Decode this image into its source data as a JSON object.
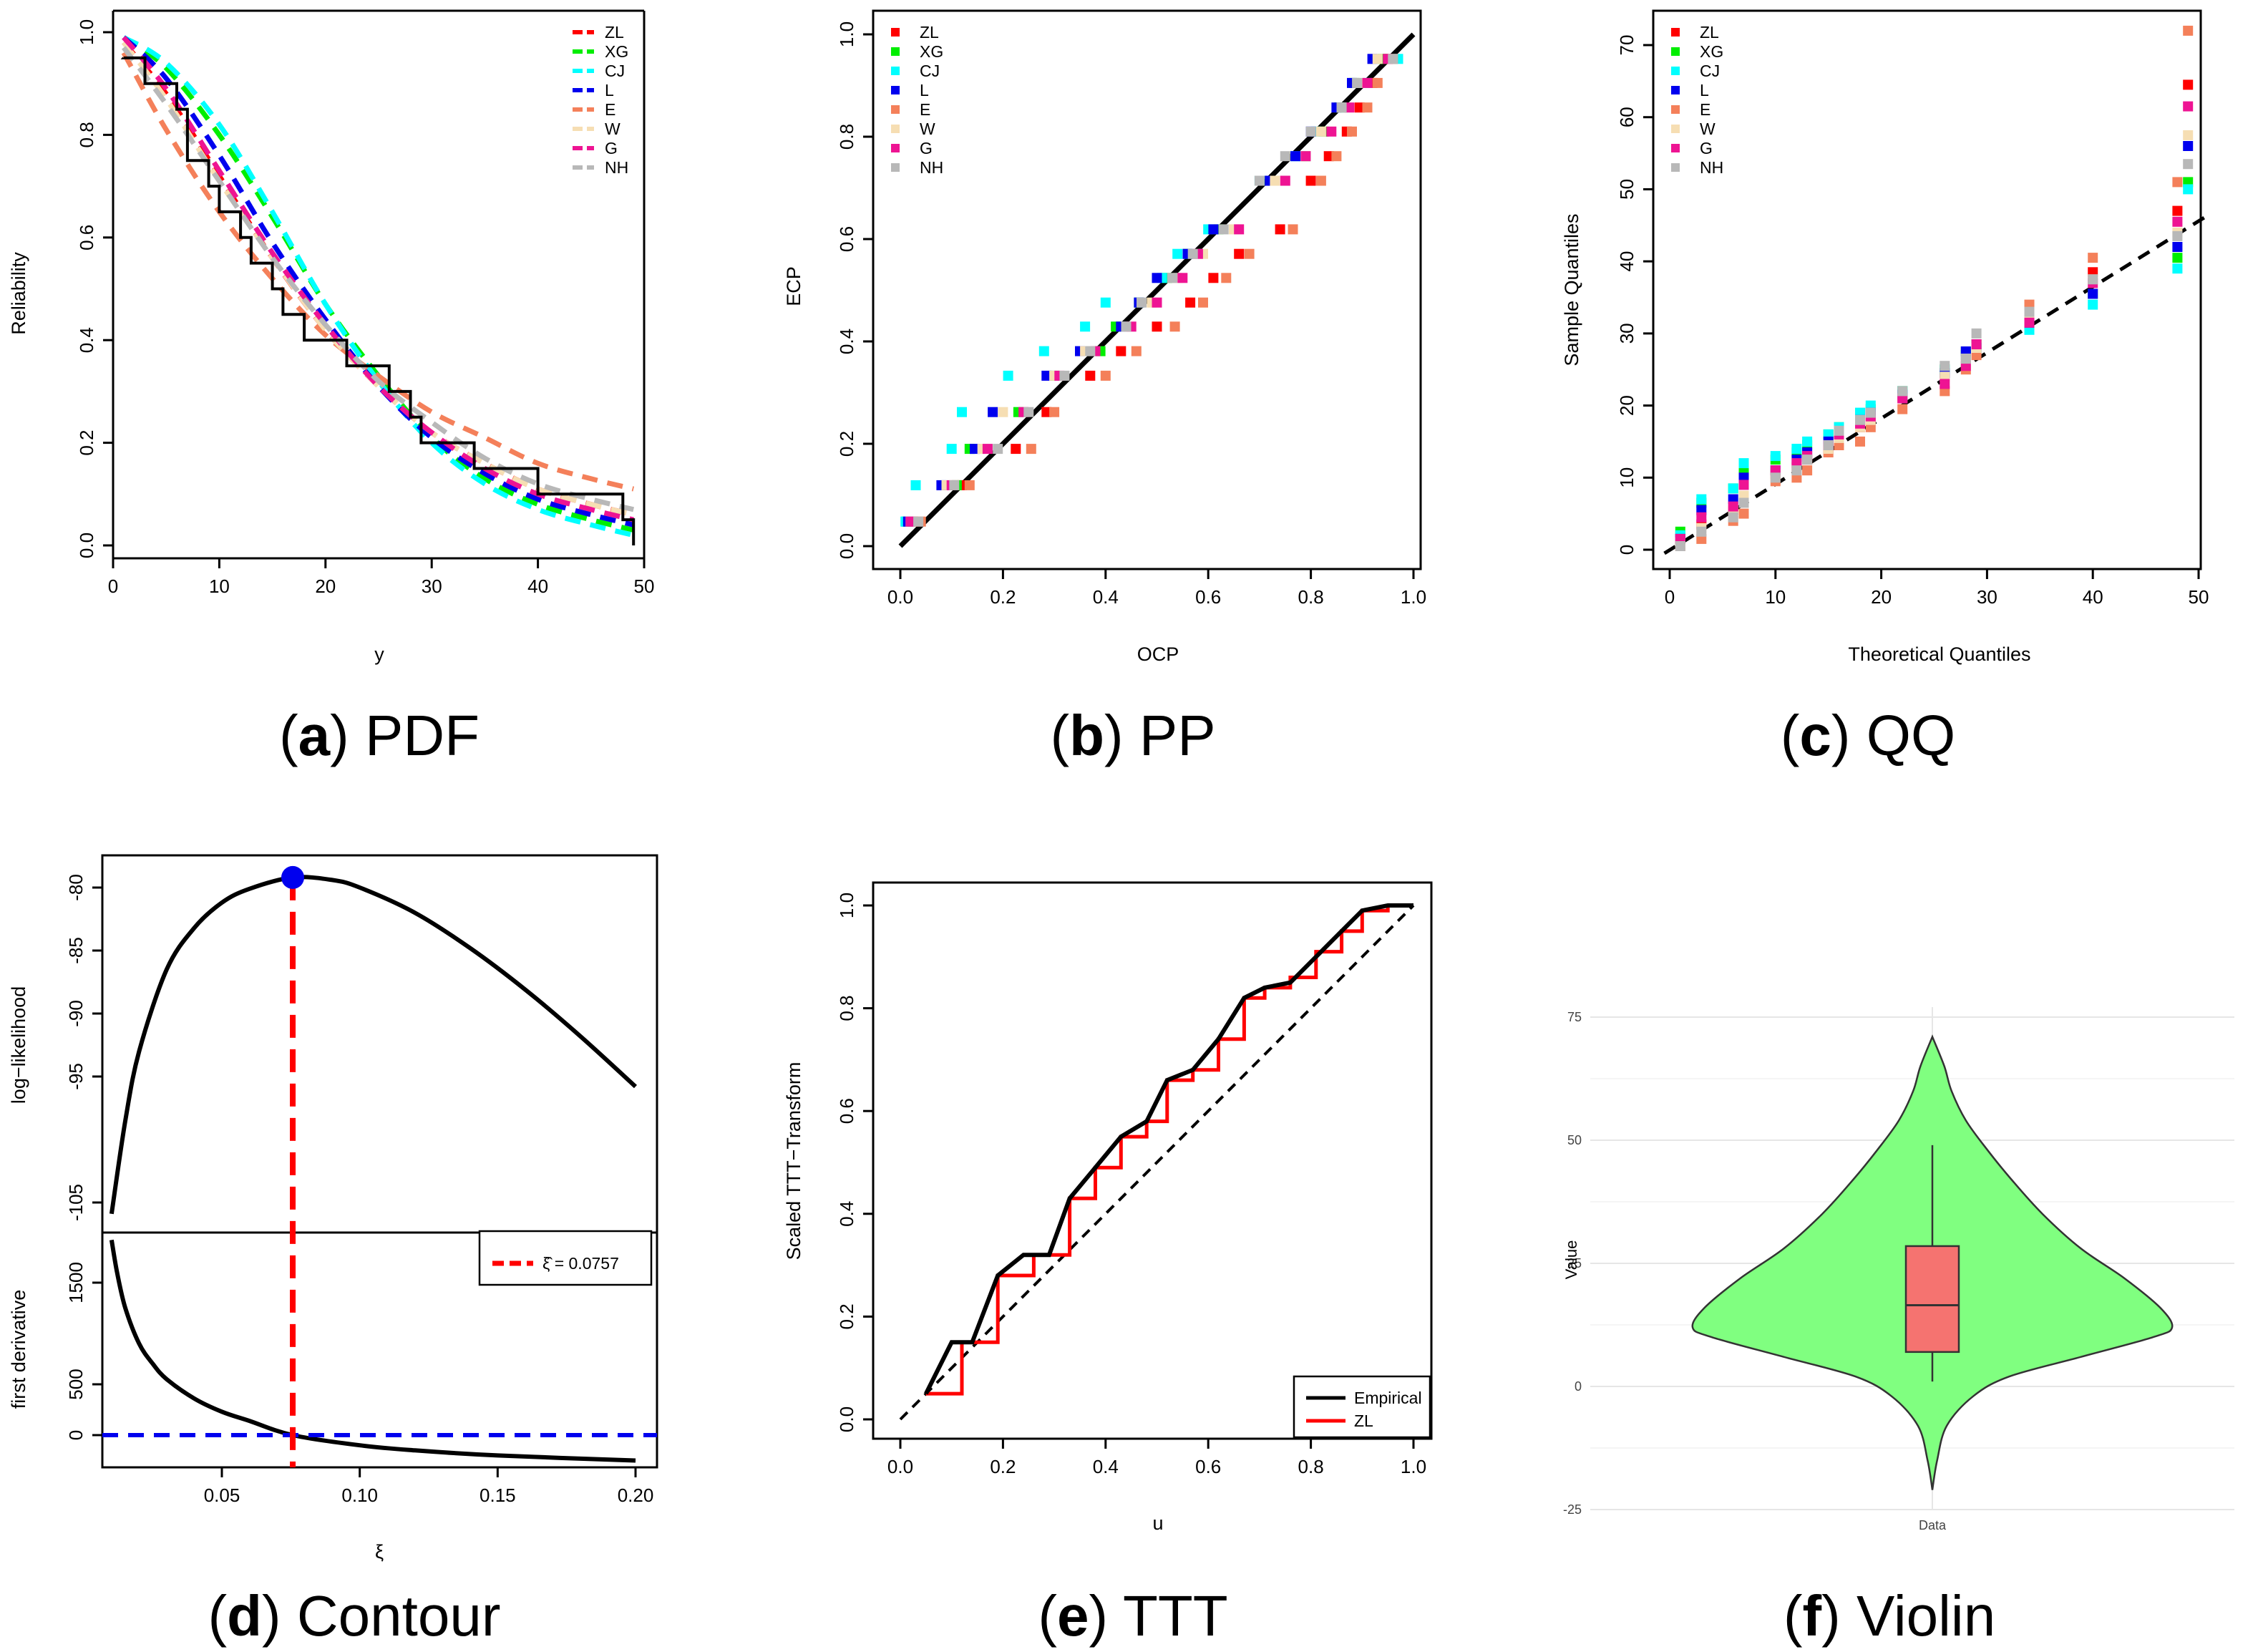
{
  "figure": {
    "captions": [
      {
        "letter": "a",
        "title": "PDF"
      },
      {
        "letter": "b",
        "title": "PP"
      },
      {
        "letter": "c",
        "title": "QQ"
      },
      {
        "letter": "d",
        "title": "Contour"
      },
      {
        "letter": "e",
        "title": "TTT"
      },
      {
        "letter": "f",
        "title": "Violin"
      }
    ]
  },
  "colors": {
    "ZL": "#ff0000",
    "XG": "#00ee00",
    "CJ": "#00ffff",
    "L": "#0000ee",
    "E": "#f4805a",
    "W": "#f6deb3",
    "G": "#ee1493",
    "NH": "#b8b8b8",
    "black": "#000000",
    "blue_dot": "#0000ee",
    "violin_fill": "#80ff80",
    "box_fill": "#f57370"
  },
  "chart_data": [
    {
      "id": "a",
      "type": "line",
      "title": "",
      "xlabel": "y",
      "ylabel": "Reliability",
      "xlim": [
        0,
        50
      ],
      "ylim": [
        0,
        1
      ],
      "xticks": [
        "0",
        "10",
        "20",
        "30",
        "40",
        "50"
      ],
      "yticks": [
        "0.0",
        "0.2",
        "0.4",
        "0.6",
        "0.8",
        "1.0"
      ],
      "legend": [
        "ZL",
        "XG",
        "CJ",
        "L",
        "E",
        "W",
        "G",
        "NH"
      ],
      "empirical_step": {
        "x": [
          1,
          3,
          6,
          7,
          7,
          9,
          10,
          12,
          13,
          15,
          16,
          17,
          18,
          19,
          22,
          26,
          28,
          29,
          34,
          40,
          48,
          49
        ],
        "y": [
          0.95,
          0.9,
          0.85,
          0.8,
          0.75,
          0.7,
          0.65,
          0.6,
          0.55,
          0.5,
          0.45,
          0.45,
          0.4,
          0.4,
          0.35,
          0.3,
          0.25,
          0.2,
          0.15,
          0.1,
          0.05,
          0.0
        ]
      },
      "series": [
        {
          "name": "ZL",
          "x": [
            1,
            5,
            10,
            15,
            20,
            25,
            30,
            35,
            40,
            45,
            49
          ],
          "y": [
            0.98,
            0.88,
            0.72,
            0.56,
            0.42,
            0.31,
            0.22,
            0.16,
            0.11,
            0.08,
            0.06
          ]
        },
        {
          "name": "XG",
          "x": [
            1,
            5,
            10,
            15,
            20,
            25,
            30,
            35,
            40,
            45,
            49
          ],
          "y": [
            0.99,
            0.93,
            0.8,
            0.64,
            0.47,
            0.33,
            0.21,
            0.13,
            0.08,
            0.05,
            0.03
          ]
        },
        {
          "name": "CJ",
          "x": [
            1,
            5,
            10,
            15,
            20,
            25,
            30,
            35,
            40,
            45,
            49
          ],
          "y": [
            0.99,
            0.94,
            0.82,
            0.65,
            0.47,
            0.32,
            0.2,
            0.12,
            0.07,
            0.04,
            0.02
          ]
        },
        {
          "name": "L",
          "x": [
            1,
            5,
            10,
            15,
            20,
            25,
            30,
            35,
            40,
            45,
            49
          ],
          "y": [
            0.99,
            0.91,
            0.76,
            0.59,
            0.44,
            0.31,
            0.21,
            0.14,
            0.09,
            0.06,
            0.04
          ]
        },
        {
          "name": "E",
          "x": [
            1,
            5,
            10,
            15,
            20,
            25,
            30,
            35,
            40,
            45,
            49
          ],
          "y": [
            0.96,
            0.81,
            0.65,
            0.52,
            0.41,
            0.33,
            0.26,
            0.21,
            0.16,
            0.13,
            0.11
          ]
        },
        {
          "name": "W",
          "x": [
            1,
            5,
            10,
            15,
            20,
            25,
            30,
            35,
            40,
            45,
            49
          ],
          "y": [
            0.98,
            0.87,
            0.71,
            0.56,
            0.42,
            0.31,
            0.22,
            0.16,
            0.11,
            0.08,
            0.06
          ]
        },
        {
          "name": "G",
          "x": [
            1,
            5,
            10,
            15,
            20,
            25,
            30,
            35,
            40,
            45,
            49
          ],
          "y": [
            0.99,
            0.89,
            0.73,
            0.57,
            0.43,
            0.31,
            0.22,
            0.15,
            0.1,
            0.07,
            0.05
          ]
        },
        {
          "name": "NH",
          "x": [
            1,
            5,
            10,
            15,
            20,
            25,
            30,
            35,
            40,
            45,
            49
          ],
          "y": [
            0.97,
            0.86,
            0.71,
            0.56,
            0.43,
            0.32,
            0.24,
            0.17,
            0.12,
            0.09,
            0.07
          ]
        }
      ]
    },
    {
      "id": "b",
      "type": "scatter",
      "xlabel": "OCP",
      "ylabel": "ECP",
      "xlim": [
        0,
        1
      ],
      "ylim": [
        0,
        1
      ],
      "xticks": [
        "0.0",
        "0.2",
        "0.4",
        "0.6",
        "0.8",
        "1.0"
      ],
      "yticks": [
        "0.0",
        "0.2",
        "0.4",
        "0.6",
        "0.8",
        "1.0"
      ],
      "legend": [
        "ZL",
        "XG",
        "CJ",
        "L",
        "E",
        "W",
        "G",
        "NH"
      ],
      "reference_line": {
        "x": [
          0,
          1
        ],
        "y": [
          0,
          1
        ]
      },
      "ecp_levels": [
        0.048,
        0.119,
        0.19,
        0.262,
        0.333,
        0.381,
        0.429,
        0.476,
        0.524,
        0.571,
        0.619,
        0.714,
        0.762,
        0.81,
        0.857,
        0.905,
        0.952
      ],
      "series": [
        {
          "name": "ZL",
          "x": [
            0.025,
            0.12,
            0.225,
            0.285,
            0.37,
            0.43,
            0.5,
            0.565,
            0.61,
            0.66,
            0.74,
            0.8,
            0.835,
            0.87,
            0.895,
            0.92,
            0.95
          ]
        },
        {
          "name": "XG",
          "x": [
            0.012,
            0.11,
            0.135,
            0.23,
            0.3,
            0.39,
            0.42,
            0.465,
            0.52,
            0.56,
            0.62,
            0.72,
            0.79,
            0.825,
            0.855,
            0.885,
            0.94
          ]
        },
        {
          "name": "CJ",
          "x": [
            0.01,
            0.03,
            0.1,
            0.12,
            0.21,
            0.28,
            0.36,
            0.4,
            0.51,
            0.54,
            0.6,
            0.7,
            0.77,
            0.81,
            0.86,
            0.91,
            0.97
          ]
        },
        {
          "name": "L",
          "x": [
            0.015,
            0.08,
            0.145,
            0.18,
            0.285,
            0.35,
            0.43,
            0.465,
            0.5,
            0.56,
            0.61,
            0.72,
            0.77,
            0.8,
            0.85,
            0.88,
            0.92
          ]
        },
        {
          "name": "E",
          "x": [
            0.04,
            0.135,
            0.255,
            0.3,
            0.4,
            0.46,
            0.535,
            0.59,
            0.635,
            0.68,
            0.765,
            0.82,
            0.85,
            0.88,
            0.91,
            0.93,
            0.96
          ]
        },
        {
          "name": "W",
          "x": [
            0.02,
            0.09,
            0.16,
            0.2,
            0.3,
            0.36,
            0.44,
            0.49,
            0.54,
            0.59,
            0.65,
            0.73,
            0.79,
            0.82,
            0.86,
            0.895,
            0.93
          ]
        },
        {
          "name": "G",
          "x": [
            0.02,
            0.1,
            0.17,
            0.24,
            0.31,
            0.38,
            0.45,
            0.5,
            0.55,
            0.58,
            0.66,
            0.75,
            0.79,
            0.84,
            0.875,
            0.91,
            0.95
          ]
        },
        {
          "name": "NH",
          "x": [
            0.035,
            0.105,
            0.19,
            0.25,
            0.32,
            0.37,
            0.44,
            0.47,
            0.53,
            0.57,
            0.63,
            0.7,
            0.75,
            0.8,
            0.86,
            0.89,
            0.96
          ]
        }
      ]
    },
    {
      "id": "c",
      "type": "scatter",
      "xlabel": "Theoretical Quantiles",
      "ylabel": "Sample Quantiles",
      "xlim": [
        -0.5,
        51
      ],
      "ylim": [
        -1,
        74
      ],
      "xticks": [
        "0",
        "10",
        "20",
        "30",
        "40",
        "50"
      ],
      "yticks": [
        "0",
        "10",
        "20",
        "30",
        "40",
        "50",
        "60",
        "70"
      ],
      "legend": [
        "ZL",
        "XG",
        "CJ",
        "L",
        "E",
        "W",
        "G",
        "NH"
      ],
      "reference_line": {
        "x": [
          -0.5,
          51
        ],
        "y": [
          -0.5,
          46.5
        ]
      },
      "observed": [
        1,
        3,
        6,
        7,
        10,
        12,
        13,
        15,
        16,
        18,
        19,
        22,
        26,
        28,
        29,
        34,
        40,
        48,
        49
      ],
      "series": [
        {
          "name": "ZL",
          "y": [
            1.5,
            3.5,
            5.5,
            7.5,
            10.5,
            11.5,
            12.5,
            14,
            15.5,
            17,
            18,
            21,
            24.5,
            27,
            28.5,
            32,
            38.5,
            47,
            64.5
          ]
        },
        {
          "name": "XG",
          "y": [
            2.5,
            6.5,
            8.5,
            11,
            12.5,
            13.5,
            14.5,
            16,
            17,
            18,
            19.5,
            22,
            25,
            27.5,
            28.5,
            32,
            35.5,
            40.5,
            51
          ]
        },
        {
          "name": "CJ",
          "y": [
            2,
            7,
            8.5,
            12,
            13,
            14,
            15,
            16,
            17,
            19,
            20,
            22,
            25,
            27,
            28,
            30.5,
            34,
            39,
            50
          ]
        },
        {
          "name": "L",
          "y": [
            1.5,
            5.5,
            7,
            10,
            11,
            12.5,
            13.5,
            15,
            16,
            18,
            19,
            21.5,
            24.5,
            27.5,
            28,
            31.5,
            35.5,
            42,
            56
          ]
        },
        {
          "name": "E",
          "y": [
            0.5,
            1.5,
            4,
            5,
            9.5,
            10,
            11,
            13.5,
            14.5,
            15,
            17,
            19.5,
            22,
            25,
            27,
            34,
            40.5,
            51,
            72
          ]
        },
        {
          "name": "W",
          "y": [
            1,
            3,
            5.5,
            7.5,
            10.5,
            11.5,
            12.5,
            14,
            15.5,
            17,
            18,
            21,
            24,
            26.5,
            28,
            32,
            37.5,
            44,
            57.5
          ]
        },
        {
          "name": "G",
          "y": [
            1.5,
            4.5,
            6,
            9,
            11,
            12,
            13,
            14.5,
            16,
            17.5,
            18.5,
            21,
            23,
            25.5,
            28.5,
            31.5,
            37,
            45.5,
            61.5
          ]
        },
        {
          "name": "NH",
          "y": [
            0.5,
            2.5,
            4.5,
            6.5,
            10,
            11,
            12.5,
            14.5,
            16.5,
            18,
            19,
            22,
            25.5,
            26.5,
            30,
            33,
            37.5,
            43.5,
            53.5
          ]
        }
      ]
    },
    {
      "id": "d",
      "type": "line",
      "xlabel": "ξ",
      "xlim": [
        0.0,
        0.21
      ],
      "xticks": [
        "0.05",
        "0.10",
        "0.15",
        "0.20"
      ],
      "legend_label": "ξ̂ = 0.0757",
      "estimate": 0.0757,
      "top": {
        "ylabel": "log−likelihood",
        "ylim": [
          -107,
          -78.5
        ],
        "yticks": [
          "-80",
          "-85",
          "-90",
          "-95",
          "-105"
        ],
        "x": [
          0.01,
          0.015,
          0.02,
          0.03,
          0.04,
          0.05,
          0.06,
          0.0757,
          0.09,
          0.1,
          0.12,
          0.14,
          0.16,
          0.18,
          0.2
        ],
        "y": [
          -105.9,
          -98.5,
          -93.0,
          -86.5,
          -83.2,
          -81.2,
          -80.1,
          -79.2,
          -79.4,
          -80.0,
          -82.0,
          -84.8,
          -88.1,
          -91.8,
          -95.8
        ],
        "max_point": {
          "x": 0.0757,
          "y": -79.2
        }
      },
      "bottom": {
        "ylabel": "first derivative",
        "ylim": [
          -350,
          2000
        ],
        "yticks": [
          "0",
          "500",
          "1500"
        ],
        "x": [
          0.01,
          0.012,
          0.015,
          0.02,
          0.025,
          0.03,
          0.04,
          0.05,
          0.06,
          0.0757,
          0.1,
          0.12,
          0.15,
          0.2
        ],
        "y": [
          1920,
          1600,
          1250,
          900,
          700,
          550,
          360,
          230,
          140,
          0,
          -100,
          -150,
          -200,
          -250
        ],
        "zero_line": 0
      }
    },
    {
      "id": "e",
      "type": "line",
      "xlabel": "u",
      "ylabel": "Scaled TTT−Transform",
      "xlim": [
        0,
        1
      ],
      "ylim": [
        0,
        1
      ],
      "xticks": [
        "0.0",
        "0.2",
        "0.4",
        "0.6",
        "0.8",
        "1.0"
      ],
      "yticks": [
        "0.0",
        "0.2",
        "0.4",
        "0.6",
        "0.8",
        "1.0"
      ],
      "legend": [
        "Empirical",
        "ZL"
      ],
      "diagonal": {
        "x": [
          0,
          1
        ],
        "y": [
          0,
          1
        ]
      },
      "empirical": {
        "x": [
          0.05,
          0.1,
          0.14,
          0.19,
          0.24,
          0.29,
          0.33,
          0.38,
          0.43,
          0.48,
          0.52,
          0.57,
          0.62,
          0.67,
          0.71,
          0.76,
          0.81,
          0.86,
          0.9,
          0.95,
          1.0
        ],
        "y": [
          0.05,
          0.15,
          0.15,
          0.28,
          0.32,
          0.32,
          0.43,
          0.49,
          0.55,
          0.58,
          0.66,
          0.68,
          0.74,
          0.82,
          0.84,
          0.85,
          0.9,
          0.95,
          0.99,
          1.0,
          1.0
        ]
      },
      "zl_step": {
        "x": [
          0.05,
          0.12,
          0.19,
          0.26,
          0.33,
          0.38,
          0.43,
          0.48,
          0.52,
          0.57,
          0.62,
          0.67,
          0.71,
          0.76,
          0.81,
          0.86,
          0.9,
          0.95,
          1.0
        ],
        "y": [
          0.05,
          0.15,
          0.28,
          0.32,
          0.43,
          0.49,
          0.55,
          0.58,
          0.66,
          0.68,
          0.74,
          0.82,
          0.84,
          0.86,
          0.91,
          0.95,
          0.99,
          1.0,
          1.0
        ]
      }
    },
    {
      "id": "f",
      "type": "violin",
      "xlabel": "Data",
      "ylabel": "Value",
      "ylim": [
        -27,
        80
      ],
      "yticks": [
        "-25",
        "0",
        "25",
        "50",
        "75"
      ],
      "category": "Data",
      "violin": {
        "y": [
          -21,
          -15,
          -8,
          -2,
          2,
          6,
          10,
          12,
          16,
          22,
          28,
          35,
          42,
          48,
          54,
          60,
          65,
          71
        ],
        "half_width": [
          0.0,
          0.02,
          0.06,
          0.17,
          0.32,
          0.62,
          0.92,
          1.0,
          0.95,
          0.8,
          0.62,
          0.46,
          0.33,
          0.23,
          0.14,
          0.08,
          0.05,
          0.0
        ]
      },
      "box": {
        "min": 1,
        "q1": 7,
        "median": 16.5,
        "q3": 28.5,
        "max": 49
      }
    }
  ]
}
